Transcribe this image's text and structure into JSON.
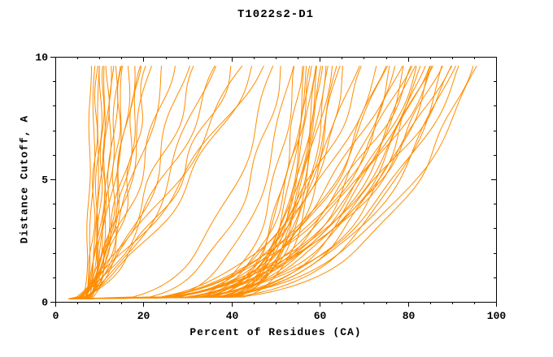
{
  "chart_data": {
    "type": "line",
    "title": "T1022s2-D1",
    "xlabel": "Percent of Residues (CA)",
    "ylabel": "Distance Cutoff, A",
    "xlim": [
      0,
      100
    ],
    "ylim": [
      0,
      10
    ],
    "x_ticks": [
      0,
      20,
      40,
      60,
      80,
      100
    ],
    "y_ticks": [
      0,
      5,
      10
    ],
    "x_minor_step": 5,
    "y_minor_step": 1,
    "grid": false,
    "legend": "none",
    "line_color": "#ff8c00",
    "axis_color": "#000000",
    "background": "#ffffff",
    "series_count": 77,
    "curve_format": [
      "x_start_percent",
      "x_percent_at_cutoff_10",
      "shape_exponent",
      "wobble_amp",
      "wobble_freq",
      "wobble_phase"
    ],
    "curves": [
      [
        3,
        8,
        0.1,
        0.3,
        1.5,
        0
      ],
      [
        3,
        9,
        0.12,
        0.4,
        1.2,
        1
      ],
      [
        3.2,
        9.5,
        0.15,
        0.5,
        1.8,
        2
      ],
      [
        3,
        10,
        0.1,
        0.3,
        1.0,
        3
      ],
      [
        3.5,
        10.5,
        0.18,
        0.6,
        1.4,
        4
      ],
      [
        3,
        11,
        0.12,
        0.4,
        2.0,
        5
      ],
      [
        3,
        11.5,
        0.2,
        0.5,
        1.1,
        0.5
      ],
      [
        3.4,
        12,
        0.15,
        0.7,
        1.6,
        1.5
      ],
      [
        3,
        12.5,
        0.25,
        0.6,
        1.3,
        2.5
      ],
      [
        3,
        13,
        0.18,
        0.5,
        1.7,
        3.5
      ],
      [
        3.6,
        14,
        0.22,
        0.8,
        1.2,
        4.5
      ],
      [
        3,
        14.5,
        0.3,
        0.6,
        1.5,
        5.5
      ],
      [
        3,
        15,
        0.2,
        0.7,
        1.9,
        0.8
      ],
      [
        3.3,
        16,
        0.35,
        0.9,
        1.0,
        1.8
      ],
      [
        3,
        17,
        0.28,
        0.8,
        1.4,
        2.8
      ],
      [
        3,
        18,
        0.4,
        1.0,
        1.2,
        3.8
      ],
      [
        3.5,
        19,
        0.33,
        0.9,
        1.6,
        4.8
      ],
      [
        3,
        20,
        0.45,
        1.1,
        1.3,
        5.8
      ],
      [
        3,
        21,
        0.38,
        1.0,
        1.8,
        1.2
      ],
      [
        3.2,
        22,
        0.5,
        1.2,
        1.1,
        2.2
      ],
      [
        3,
        25,
        0.55,
        1.3,
        1.0,
        0.3
      ],
      [
        3,
        27,
        0.6,
        1.2,
        1.4,
        1.3
      ],
      [
        3.4,
        30,
        0.5,
        1.4,
        1.2,
        2.3
      ],
      [
        3,
        33,
        0.65,
        1.3,
        1.5,
        3.3
      ],
      [
        3,
        36,
        0.55,
        1.5,
        1.0,
        4.3
      ],
      [
        3.5,
        38,
        0.7,
        1.4,
        1.3,
        5.3
      ],
      [
        3,
        41,
        0.6,
        1.5,
        1.6,
        0.6
      ],
      [
        3,
        44,
        0.75,
        1.6,
        1.1,
        1.6
      ],
      [
        3.3,
        46,
        0.65,
        1.4,
        1.4,
        2.6
      ],
      [
        3,
        48,
        0.8,
        1.5,
        1.2,
        3.6
      ],
      [
        3,
        50,
        0.3,
        1.0,
        1.2,
        0.9
      ],
      [
        3,
        52,
        0.25,
        0.9,
        1.5,
        1.9
      ],
      [
        3.2,
        54,
        0.2,
        0.8,
        1.1,
        2.9
      ],
      [
        3,
        55,
        0.15,
        0.7,
        1.4,
        3.9
      ],
      [
        3,
        56,
        0.12,
        0.6,
        1.7,
        4.9
      ],
      [
        3.5,
        57,
        0.1,
        0.5,
        1.2,
        5.9
      ],
      [
        3,
        57.5,
        0.14,
        0.6,
        1.0,
        0.4
      ],
      [
        3,
        58,
        0.11,
        0.5,
        1.3,
        1.4
      ],
      [
        3.2,
        58.5,
        0.16,
        0.7,
        1.6,
        2.4
      ],
      [
        3,
        59,
        0.12,
        0.5,
        1.1,
        3.4
      ],
      [
        3,
        59.5,
        0.1,
        0.4,
        1.5,
        4.4
      ],
      [
        3.4,
        60,
        0.13,
        0.6,
        1.2,
        5.4
      ],
      [
        3,
        60.5,
        0.11,
        0.5,
        1.4,
        0.7
      ],
      [
        3,
        61,
        0.15,
        0.6,
        1.0,
        1.7
      ],
      [
        3.2,
        61.5,
        0.12,
        0.5,
        1.3,
        2.7
      ],
      [
        3,
        62,
        0.1,
        0.4,
        1.6,
        3.7
      ],
      [
        3,
        63,
        0.17,
        0.7,
        1.1,
        4.7
      ],
      [
        3.5,
        64,
        0.14,
        0.6,
        1.4,
        5.7
      ],
      [
        3,
        65,
        0.19,
        0.8,
        1.2,
        1.1
      ],
      [
        3,
        66,
        0.16,
        0.7,
        1.5,
        2.1
      ],
      [
        3,
        69,
        0.25,
        1.0,
        1.2,
        2.0
      ],
      [
        3,
        71,
        0.3,
        1.1,
        1.4,
        4.1
      ],
      [
        3,
        74,
        0.3,
        1.2,
        1.0,
        0.2
      ],
      [
        3,
        75,
        0.25,
        1.1,
        1.3,
        1.2
      ],
      [
        3.2,
        76,
        0.28,
        1.0,
        1.1,
        2.2
      ],
      [
        3,
        77,
        0.22,
        0.9,
        1.4,
        3.2
      ],
      [
        3,
        78,
        0.32,
        1.2,
        1.2,
        4.2
      ],
      [
        3.4,
        79,
        0.26,
        1.0,
        1.5,
        5.2
      ],
      [
        3,
        80,
        0.2,
        0.9,
        1.0,
        0.5
      ],
      [
        3,
        81,
        0.3,
        1.1,
        1.3,
        1.5
      ],
      [
        3.2,
        82,
        0.24,
        1.0,
        1.1,
        2.5
      ],
      [
        3,
        82.5,
        0.33,
        1.2,
        1.4,
        3.5
      ],
      [
        3,
        83,
        0.27,
        1.0,
        1.2,
        4.5
      ],
      [
        3.5,
        84,
        0.21,
        0.9,
        1.5,
        5.5
      ],
      [
        3,
        84.5,
        0.31,
        1.1,
        1.0,
        0.8
      ],
      [
        3,
        85,
        0.25,
        1.0,
        1.3,
        1.8
      ],
      [
        3.2,
        86,
        0.29,
        1.1,
        1.1,
        2.8
      ],
      [
        3,
        86.5,
        0.23,
        0.9,
        1.4,
        3.8
      ],
      [
        3,
        87,
        0.33,
        1.2,
        1.2,
        4.8
      ],
      [
        3.4,
        88,
        0.27,
        1.0,
        1.5,
        5.8
      ],
      [
        3,
        89,
        0.21,
        0.9,
        1.0,
        1.0
      ],
      [
        3,
        90,
        0.3,
        1.1,
        1.3,
        2.0
      ],
      [
        3.2,
        91,
        0.24,
        1.0,
        1.1,
        3.0
      ],
      [
        3,
        92,
        0.34,
        1.2,
        1.4,
        4.0
      ],
      [
        3,
        93,
        0.28,
        1.0,
        1.2,
        5.0
      ],
      [
        3.5,
        95,
        0.22,
        0.9,
        1.5,
        0.3
      ],
      [
        3,
        97,
        0.26,
        1.0,
        1.1,
        1.3
      ]
    ]
  }
}
